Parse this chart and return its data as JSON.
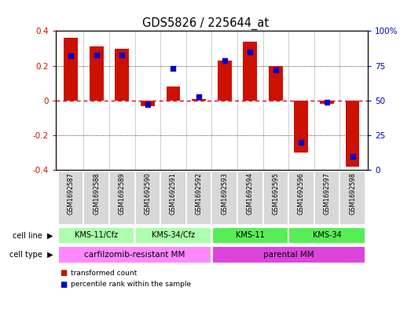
{
  "title": "GDS5826 / 225644_at",
  "samples": [
    "GSM1692587",
    "GSM1692588",
    "GSM1692589",
    "GSM1692590",
    "GSM1692591",
    "GSM1692592",
    "GSM1692593",
    "GSM1692594",
    "GSM1692595",
    "GSM1692596",
    "GSM1692597",
    "GSM1692598"
  ],
  "transformed_count": [
    0.36,
    0.31,
    0.3,
    -0.03,
    0.08,
    0.01,
    0.23,
    0.34,
    0.2,
    -0.3,
    -0.02,
    -0.38
  ],
  "percentile_rank": [
    82,
    83,
    83,
    47,
    73,
    53,
    79,
    85,
    72,
    20,
    49,
    10
  ],
  "cell_line_groups": [
    {
      "label": "KMS-11/Cfz",
      "start": 0,
      "end": 3,
      "color": "#aaffaa"
    },
    {
      "label": "KMS-34/Cfz",
      "start": 3,
      "end": 6,
      "color": "#aaffaa"
    },
    {
      "label": "KMS-11",
      "start": 6,
      "end": 9,
      "color": "#55ee55"
    },
    {
      "label": "KMS-34",
      "start": 9,
      "end": 12,
      "color": "#55ee55"
    }
  ],
  "cell_type_groups": [
    {
      "label": "carfilzomib-resistant MM",
      "start": 0,
      "end": 6,
      "color": "#ff88ff"
    },
    {
      "label": "parental MM",
      "start": 6,
      "end": 12,
      "color": "#dd44dd"
    }
  ],
  "bar_color": "#cc1100",
  "dot_color": "#0000cc",
  "ylim": [
    -0.4,
    0.4
  ],
  "y2lim": [
    0,
    100
  ],
  "yticks": [
    -0.4,
    -0.2,
    0.0,
    0.2,
    0.4
  ],
  "y2ticks": [
    0,
    25,
    50,
    75,
    100
  ],
  "y2ticklabels": [
    "0",
    "25",
    "50",
    "75",
    "100%"
  ],
  "hline_color": "#cc0000",
  "dotline_color": "black",
  "bg_color": "#ffffff",
  "legend_items": [
    {
      "label": "transformed count",
      "color": "#cc1100"
    },
    {
      "label": "percentile rank within the sample",
      "color": "#0000cc"
    }
  ]
}
